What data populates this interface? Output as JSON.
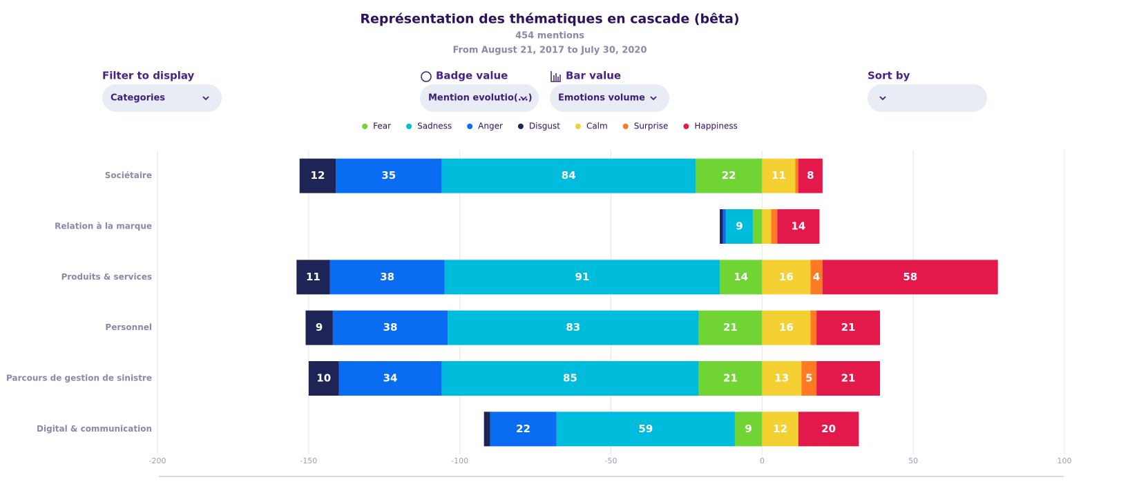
{
  "header": {
    "title": "Représentation des thématiques en cascade (bêta)",
    "mentions": "454 mentions",
    "period": "From August 21, 2017 to July 30, 2020"
  },
  "controls": [
    {
      "label": "Filter to display",
      "value": "Categories"
    },
    {
      "label": "Badge value",
      "value": "Mention evolutio(...)"
    },
    {
      "label": "Bar value",
      "value": "Emotions volume"
    },
    {
      "label": "Sort by"
    }
  ],
  "chart_data": {
    "type": "bar",
    "orientation": "horizontal",
    "stacked": true,
    "categories": [
      "Sociétaire",
      "Relation à la marque",
      "Produits & services",
      "Personnel",
      "Parcours de gestion de sinistre",
      "Digital & communication"
    ],
    "series": [
      {
        "name": "Fear",
        "color": "#6fd434",
        "values": [
          -22,
          -3,
          -14,
          -21,
          -21,
          -9
        ],
        "value_labels": [
          "22",
          null,
          "14",
          "21",
          "21",
          "9"
        ]
      },
      {
        "name": "Sadness",
        "color": "#00bcdc",
        "values": [
          -84,
          -9,
          -91,
          -83,
          -85,
          -59
        ],
        "value_labels": [
          "84",
          "9",
          "91",
          "83",
          "85",
          "59"
        ]
      },
      {
        "name": "Anger",
        "color": "#0a6cf0",
        "values": [
          -35,
          -1,
          -38,
          -38,
          -34,
          -22
        ],
        "value_labels": [
          "35",
          null,
          "38",
          "38",
          "34",
          "22"
        ]
      },
      {
        "name": "Disgust",
        "color": "#1e2556",
        "values": [
          -12,
          -1,
          -11,
          -9,
          -10,
          -2
        ],
        "value_labels": [
          "12",
          null,
          "11",
          "9",
          "10",
          null
        ]
      },
      {
        "name": "Calm",
        "color": "#f5d033",
        "values": [
          11,
          3,
          16,
          16,
          13,
          12
        ],
        "value_labels": [
          "11",
          null,
          "16",
          "16",
          "13",
          "12"
        ]
      },
      {
        "name": "Surprise",
        "color": "#ff7a22",
        "values": [
          1,
          2,
          4,
          2,
          5,
          0
        ],
        "value_labels": [
          null,
          null,
          "4",
          null,
          "5",
          null
        ]
      },
      {
        "name": "Happiness",
        "color": "#e3194b",
        "values": [
          8,
          14,
          58,
          21,
          21,
          20
        ],
        "value_labels": [
          "8",
          "14",
          "58",
          "21",
          "21",
          "20"
        ]
      }
    ],
    "xlim": [
      -200,
      100
    ],
    "xticks": [
      -200,
      -150,
      -100,
      -50,
      0,
      50,
      100
    ],
    "grid": true
  }
}
